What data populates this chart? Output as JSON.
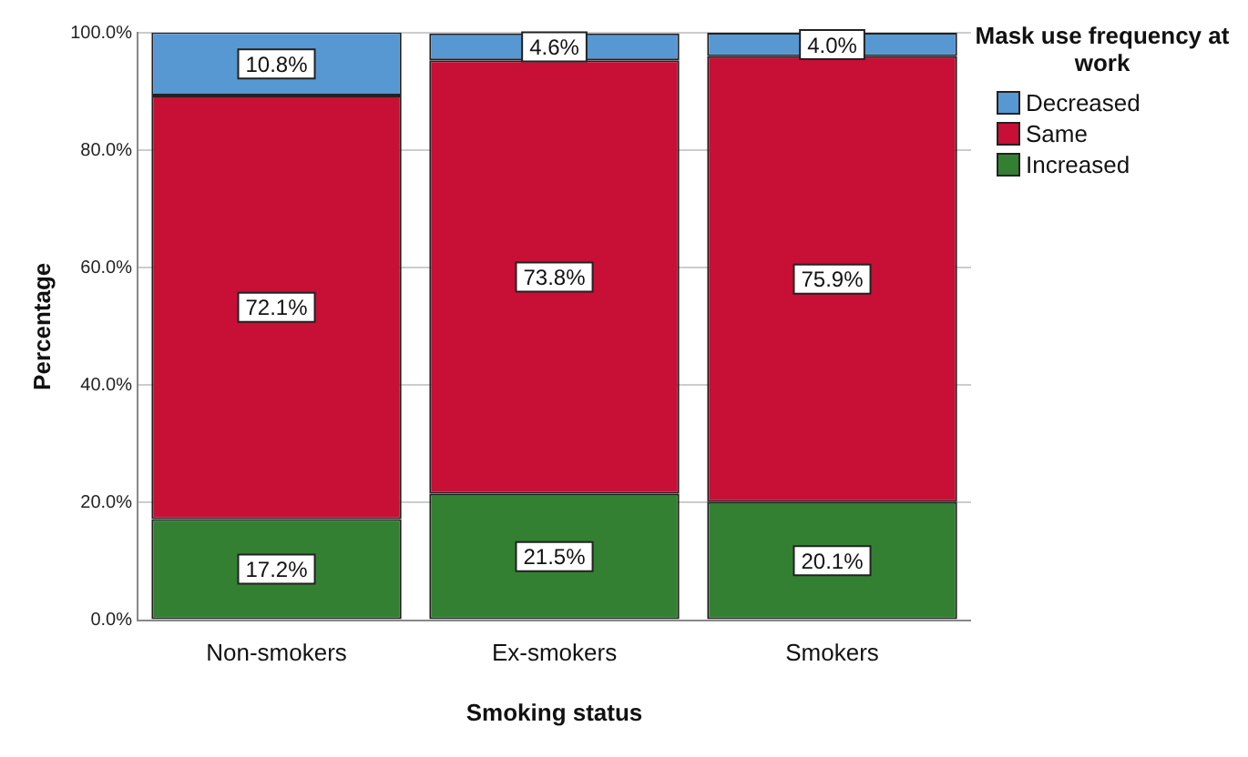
{
  "chart_data": {
    "type": "bar",
    "stacked": true,
    "xlabel": "Smoking status",
    "ylabel": "Percentage",
    "legend_title": "Mask use frequency at work",
    "legend": "top right",
    "grid": "y",
    "categories": [
      "Non-smokers",
      "Ex-smokers",
      "Smokers"
    ],
    "series": [
      {
        "name": "Increased",
        "color": "#338033",
        "values": [
          17.2,
          21.5,
          20.1
        ],
        "value_labels": [
          "17.2%",
          "21.5%",
          "20.1%"
        ]
      },
      {
        "name": "Same",
        "color": "#c80f35",
        "values": [
          72.1,
          73.8,
          75.9
        ],
        "value_labels": [
          "72.1%",
          "73.8%",
          "75.9%"
        ]
      },
      {
        "name": "Decreased",
        "color": "#5797d2",
        "values": [
          10.8,
          4.6,
          4.0
        ],
        "value_labels": [
          "10.8%",
          "4.6%",
          "4.0%"
        ]
      }
    ],
    "ylim": [
      0,
      100
    ],
    "yticks": [
      {
        "value": 0,
        "label": "0.0%"
      },
      {
        "value": 20,
        "label": "20.0%"
      },
      {
        "value": 40,
        "label": "40.0%"
      },
      {
        "value": 60,
        "label": "60.0%"
      },
      {
        "value": 80,
        "label": "80.0%"
      },
      {
        "value": 100,
        "label": "100.0%"
      }
    ]
  }
}
